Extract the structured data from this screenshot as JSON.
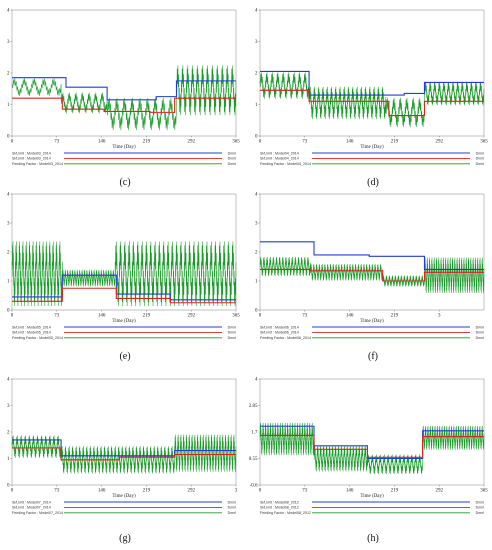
{
  "colors": {
    "blue": "#1f3fd1",
    "red": "#d8261b",
    "green": "#1a9a2a"
  },
  "chart_data": [
    {
      "type": "line",
      "label": "(c)",
      "xlabel": "Time (Day)",
      "x_ticks": [
        "0",
        "73",
        "146",
        "219",
        "292",
        "365"
      ],
      "y_ticks": [
        "0",
        "1",
        "2",
        "3",
        "4"
      ],
      "ylim": [
        0,
        4
      ],
      "legend": [
        {
          "text": "SI/Limit : Model03_2014",
          "unit": "Dmnl",
          "color": "#1f3fd1"
        },
        {
          "text": "SI/Limit : Model03_2014",
          "unit": "Dmnl",
          "color": "#d8261b"
        },
        {
          "text": "Feeding Factor : Model03_2014",
          "unit": "Dmnl",
          "color": "#1a9a2a"
        }
      ],
      "series": [
        {
          "color": "#1f3fd1",
          "steps": [
            [
              0,
              1.85
            ],
            [
              88,
              1.55
            ],
            [
              155,
              1.15
            ],
            [
              235,
              1.25
            ],
            [
              268,
              1.75
            ],
            [
              365,
              1.75
            ]
          ]
        },
        {
          "color": "#d8261b",
          "steps": [
            [
              0,
              1.2
            ],
            [
              82,
              0.85
            ],
            [
              150,
              0.78
            ],
            [
              225,
              0.75
            ],
            [
              265,
              1.2
            ],
            [
              365,
              1.2
            ]
          ]
        },
        {
          "color": "#1a9a2a",
          "segments": [
            [
              0,
              80,
              1.55,
              0.3,
              5
            ],
            [
              80,
              155,
              1.05,
              0.35,
              7
            ],
            [
              155,
              268,
              0.7,
              0.55,
              9
            ],
            [
              268,
              365,
              1.45,
              0.85,
              12
            ]
          ]
        }
      ]
    },
    {
      "type": "line",
      "label": "(d)",
      "xlabel": "Time (Day)",
      "x_ticks": [
        "0",
        "73",
        "146",
        "219",
        "292",
        "365"
      ],
      "y_ticks": [
        "0",
        "1",
        "2",
        "3",
        "4"
      ],
      "ylim": [
        0,
        4
      ],
      "legend": [
        {
          "text": "SI/Limit : Model04_2014",
          "unit": "Dmnl",
          "color": "#1f3fd1"
        },
        {
          "text": "SI/Limit : Model04_2014",
          "unit": "Dmnl",
          "color": "#d8261b"
        },
        {
          "text": "Feeding Factor : Model04_2014",
          "unit": "Dmnl",
          "color": "#1a9a2a"
        }
      ],
      "series": [
        {
          "color": "#1f3fd1",
          "steps": [
            [
              0,
              2.05
            ],
            [
              80,
              1.3
            ],
            [
              235,
              1.35
            ],
            [
              268,
              1.7
            ],
            [
              365,
              1.7
            ]
          ]
        },
        {
          "color": "#d8261b",
          "steps": [
            [
              0,
              1.45
            ],
            [
              80,
              1.1
            ],
            [
              210,
              0.65
            ],
            [
              268,
              1.1
            ],
            [
              365,
              1.1
            ]
          ]
        },
        {
          "color": "#1a9a2a",
          "segments": [
            [
              0,
              80,
              1.6,
              0.45,
              9
            ],
            [
              80,
              205,
              1.05,
              0.55,
              18
            ],
            [
              205,
              268,
              0.75,
              0.5,
              6
            ],
            [
              268,
              365,
              1.35,
              0.4,
              13
            ]
          ]
        }
      ]
    },
    {
      "type": "line",
      "label": "(e)",
      "xlabel": "Time (Day)",
      "x_ticks": [
        "0",
        "73",
        "146",
        "219",
        "292",
        "365"
      ],
      "y_ticks": [
        "0",
        "1",
        "2",
        "3",
        "4"
      ],
      "ylim": [
        0,
        4
      ],
      "legend": [
        {
          "text": "SI/Limit : Model05_2014",
          "unit": "Dmnl",
          "color": "#1f3fd1"
        },
        {
          "text": "SI/Limit : Model05_2014",
          "unit": "Dmnl",
          "color": "#d8261b"
        },
        {
          "text": "Feeding Factor : Model05_2014",
          "unit": "Dmnl",
          "color": "#1a9a2a"
        }
      ],
      "series": [
        {
          "color": "#1f3fd1",
          "steps": [
            [
              0,
              0.45
            ],
            [
              82,
              1.2
            ],
            [
              170,
              0.55
            ],
            [
              258,
              0.35
            ],
            [
              365,
              0.35
            ]
          ]
        },
        {
          "color": "#d8261b",
          "steps": [
            [
              0,
              0.3
            ],
            [
              82,
              0.75
            ],
            [
              170,
              0.4
            ],
            [
              258,
              0.25
            ],
            [
              365,
              0.25
            ]
          ]
        },
        {
          "color": "#1a9a2a",
          "segments": [
            [
              0,
              82,
              1.25,
              1.2,
              15
            ],
            [
              82,
              168,
              1.1,
              0.3,
              22
            ],
            [
              168,
              365,
              1.25,
              1.2,
              28
            ]
          ]
        }
      ]
    },
    {
      "type": "line",
      "label": "(f)",
      "xlabel": "Time (Day)",
      "x_ticks": [
        "0",
        "73",
        "146",
        "219",
        "3"
      ],
      "y_ticks": [
        "0",
        "1",
        "2",
        "3",
        "4"
      ],
      "ylim": [
        0,
        4
      ],
      "legend": [
        {
          "text": "SI/Limit : Model06_2014",
          "unit": "Dmnl",
          "color": "#1f3fd1"
        },
        {
          "text": "SI/Limit : Model06_2014",
          "unit": "Dmnl",
          "color": "#d8261b"
        },
        {
          "text": "Feeding Factor : Model06_2014",
          "unit": "Dmnl",
          "color": "#1a9a2a"
        }
      ],
      "series": [
        {
          "color": "#1f3fd1",
          "steps": [
            [
              0,
              2.35
            ],
            [
              88,
              1.9
            ],
            [
              178,
              1.85
            ],
            [
              268,
              1.4
            ],
            [
              365,
              1.4
            ]
          ]
        },
        {
          "color": "#d8261b",
          "steps": [
            [
              0,
              1.4
            ],
            [
              82,
              1.35
            ],
            [
              200,
              1.0
            ],
            [
              268,
              1.3
            ],
            [
              365,
              1.3
            ]
          ]
        },
        {
          "color": "#1a9a2a",
          "segments": [
            [
              0,
              82,
              1.5,
              0.35,
              16
            ],
            [
              82,
              200,
              1.3,
              0.3,
              26
            ],
            [
              200,
              268,
              1.0,
              0.2,
              14
            ],
            [
              268,
              365,
              1.2,
              0.65,
              26
            ]
          ]
        }
      ]
    },
    {
      "type": "line",
      "label": "(g)",
      "xlabel": "Time (Day)",
      "x_ticks": [
        "0",
        "73",
        "146",
        "219",
        "292",
        "3"
      ],
      "y_ticks": [
        "0",
        "1",
        "2",
        "3",
        "4"
      ],
      "ylim": [
        0,
        4
      ],
      "legend": [
        {
          "text": "SI/Limit : Model07_2014",
          "unit": "Dmnl",
          "color": "#1f3fd1"
        },
        {
          "text": "SI/Limit : Model07_2014",
          "unit": "Dmnl",
          "color": "#d8261b"
        },
        {
          "text": "Feeding Factor : Model07_2014",
          "unit": "Dmnl",
          "color": "#1a9a2a"
        }
      ],
      "series": [
        {
          "color": "#1f3fd1",
          "steps": [
            [
              0,
              1.7
            ],
            [
              80,
              1.1
            ],
            [
              265,
              1.3
            ],
            [
              365,
              1.3
            ]
          ]
        },
        {
          "color": "#d8261b",
          "steps": [
            [
              0,
              1.4
            ],
            [
              80,
              0.95
            ],
            [
              175,
              1.05
            ],
            [
              265,
              1.15
            ],
            [
              365,
              1.15
            ]
          ]
        },
        {
          "color": "#1a9a2a",
          "segments": [
            [
              0,
              80,
              1.45,
              0.45,
              12
            ],
            [
              80,
              265,
              0.95,
              0.55,
              32
            ],
            [
              265,
              365,
              1.2,
              0.75,
              22
            ]
          ]
        }
      ]
    },
    {
      "type": "line",
      "label": "(h)",
      "xlabel": "Time (Day)",
      "x_ticks": [
        "0",
        "73",
        "146",
        "219",
        "292",
        "365"
      ],
      "y_ticks": [
        "-0.6",
        "0.55",
        "1.7",
        "2.85",
        "4"
      ],
      "ylim": [
        -0.6,
        4
      ],
      "legend": [
        {
          "text": "SI/Limit : Model08_2012",
          "unit": "Dmnl",
          "color": "#1f3fd1"
        },
        {
          "text": "SI/Limit : Model08_2012",
          "unit": "Dmnl",
          "color": "#d8261b"
        },
        {
          "text": "Feeding Factor : Model08_2012",
          "unit": "Dmnl",
          "color": "#1a9a2a"
        }
      ],
      "series": [
        {
          "color": "#1f3fd1",
          "steps": [
            [
              0,
              1.95
            ],
            [
              88,
              1.1
            ],
            [
              175,
              0.55
            ],
            [
              265,
              1.75
            ],
            [
              365,
              1.75
            ]
          ]
        },
        {
          "color": "#d8261b",
          "steps": [
            [
              0,
              1.55
            ],
            [
              88,
              0.95
            ],
            [
              175,
              0.6
            ],
            [
              265,
              1.5
            ],
            [
              365,
              1.5
            ]
          ]
        },
        {
          "color": "#1a9a2a",
          "segments": [
            [
              0,
              88,
              1.4,
              0.75,
              22
            ],
            [
              88,
              175,
              0.55,
              0.6,
              18
            ],
            [
              175,
              265,
              0.3,
              0.45,
              14
            ],
            [
              265,
              365,
              1.45,
              0.55,
              26
            ]
          ]
        }
      ]
    }
  ]
}
